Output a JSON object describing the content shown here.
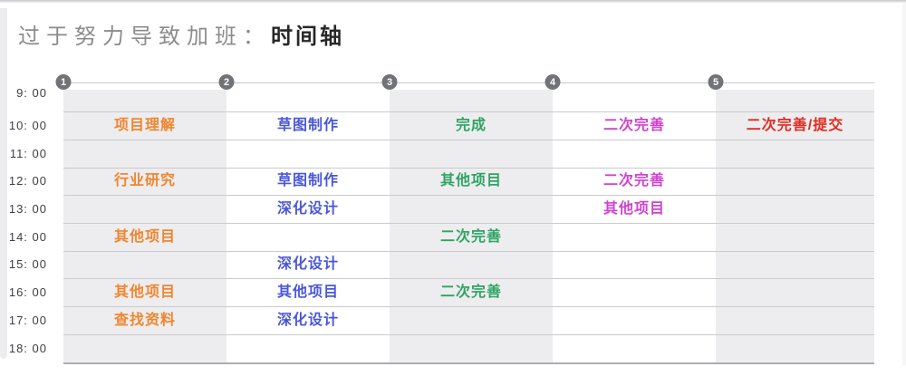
{
  "title": {
    "prefix": "过于努力导致加班：",
    "emphasis": "时间轴"
  },
  "colors": {
    "title_prefix": "#8c8c8c",
    "title_emphasis": "#282828",
    "time_label": "#3e3e40",
    "shaded_band": "#ededef",
    "gridline": "#c9cbcd",
    "gridline_bottom": "#abaeb0",
    "marker_circle": "#717376",
    "column_1_orange": "#f0862f",
    "column_2_blue": "#4a57d8",
    "column_3_green": "#2fa463",
    "column_4_magenta": "#ce44ce",
    "column_5_red": "#e02b20"
  },
  "chart_data": {
    "type": "table",
    "subtype": "timeline-schedule-grid",
    "title": "过于努力导致加班：时间轴",
    "legend_position": "none",
    "grid": true,
    "time_labels": [
      "9: 00",
      "10: 00",
      "11: 00",
      "12: 00",
      "13: 00",
      "14: 00",
      "15: 00",
      "16: 00",
      "17: 00",
      "18: 00"
    ],
    "columns": [
      {
        "marker": "1",
        "color": "#f0862f",
        "shaded": true,
        "entries": [
          {
            "time": "10: 00",
            "label": "项目理解"
          },
          {
            "time": "12: 00",
            "label": "行业研究"
          },
          {
            "time": "14: 00",
            "label": "其他项目"
          },
          {
            "time": "16: 00",
            "label": "其他项目"
          },
          {
            "time": "17: 00",
            "label": "查找资料"
          }
        ]
      },
      {
        "marker": "2",
        "color": "#4a57d8",
        "shaded": false,
        "entries": [
          {
            "time": "10: 00",
            "label": "草图制作"
          },
          {
            "time": "12: 00",
            "label": "草图制作"
          },
          {
            "time": "13: 00",
            "label": "深化设计"
          },
          {
            "time": "15: 00",
            "label": "深化设计"
          },
          {
            "time": "16: 00",
            "label": "其他项目"
          },
          {
            "time": "17: 00",
            "label": "深化设计"
          }
        ]
      },
      {
        "marker": "3",
        "color": "#2fa463",
        "shaded": true,
        "entries": [
          {
            "time": "10: 00",
            "label": "完成"
          },
          {
            "time": "12: 00",
            "label": "其他项目"
          },
          {
            "time": "14: 00",
            "label": "二次完善"
          },
          {
            "time": "16: 00",
            "label": "二次完善"
          }
        ]
      },
      {
        "marker": "4",
        "color": "#ce44ce",
        "shaded": false,
        "entries": [
          {
            "time": "10: 00",
            "label": "二次完善"
          },
          {
            "time": "12: 00",
            "label": "二次完善"
          },
          {
            "time": "13: 00",
            "label": "其他项目"
          }
        ]
      },
      {
        "marker": "5",
        "color": "#e02b20",
        "shaded": true,
        "entries": [
          {
            "time": "10: 00",
            "label": "二次完善/提交"
          }
        ]
      }
    ]
  }
}
